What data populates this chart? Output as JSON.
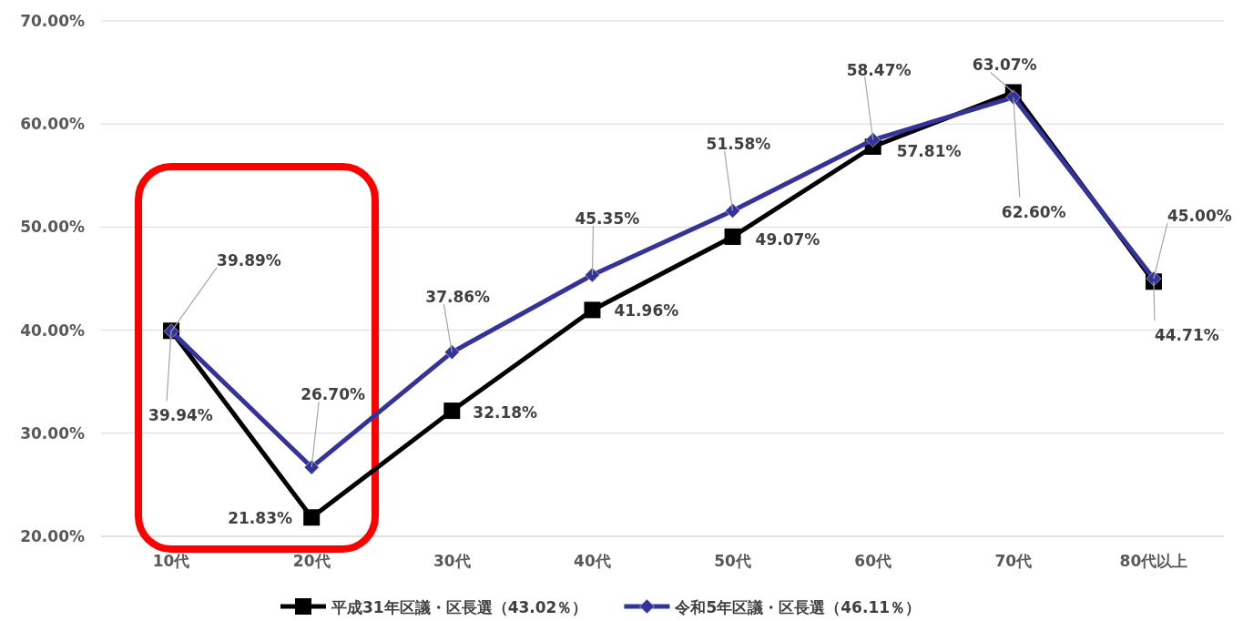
{
  "chart_data": {
    "type": "line",
    "categories": [
      "10代",
      "20代",
      "30代",
      "40代",
      "50代",
      "60代",
      "70代",
      "80代以上"
    ],
    "series": [
      {
        "name": "平成31年区議・区長選（43.02％）",
        "color": "#000000",
        "marker": "square",
        "values": [
          39.94,
          21.83,
          32.18,
          41.96,
          49.07,
          57.81,
          63.07,
          44.71
        ],
        "value_labels": [
          "39.94%",
          "21.83%",
          "32.18%",
          "41.96%",
          "49.07%",
          "57.81%",
          "63.07%",
          "44.71%"
        ]
      },
      {
        "name": "令和5年区議・区長選（46.11％）",
        "color": "#333399",
        "marker": "diamond",
        "values": [
          39.89,
          26.7,
          37.86,
          45.35,
          51.58,
          58.47,
          62.6,
          45.0
        ],
        "value_labels": [
          "39.89%",
          "26.70%",
          "37.86%",
          "45.35%",
          "51.58%",
          "58.47%",
          "62.60%",
          "45.00%"
        ]
      }
    ],
    "ylim": [
      20,
      70
    ],
    "yticks": [
      {
        "value": 20,
        "label": "20.00%"
      },
      {
        "value": 30,
        "label": "30.00%"
      },
      {
        "value": 40,
        "label": "40.00%"
      },
      {
        "value": 50,
        "label": "50.00%"
      },
      {
        "value": 60,
        "label": "60.00%"
      },
      {
        "value": 70,
        "label": "70.00%"
      }
    ],
    "grid": "y",
    "legend": "bottom"
  }
}
